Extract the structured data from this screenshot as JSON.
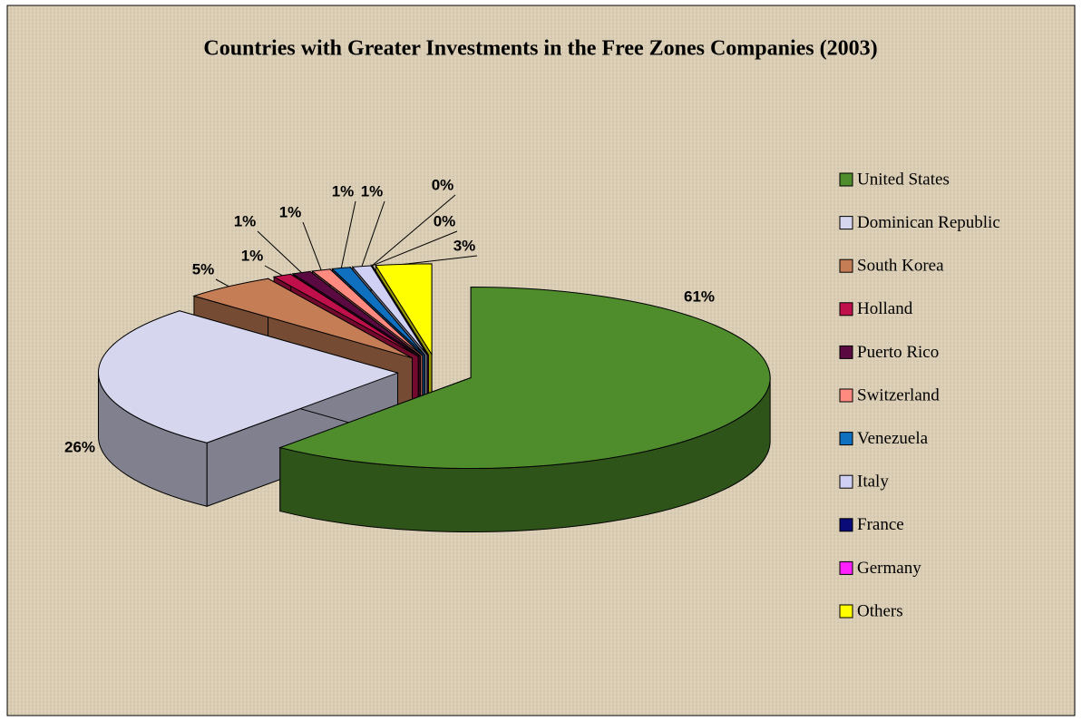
{
  "chart_data": {
    "type": "pie",
    "title": "Countries with Greater Investments in the Free Zones Companies (2003)",
    "categories": [
      "United States",
      "Dominican Republic",
      "South Korea",
      "Holland",
      "Puerto Rico",
      "Switzerland",
      "Venezuela",
      "Italy",
      "France",
      "Germany",
      "Others"
    ],
    "values": [
      61,
      26,
      5,
      1,
      1,
      1,
      1,
      1,
      0,
      0,
      3
    ],
    "value_labels": [
      "61%",
      "26%",
      "5%",
      "1%",
      "1%",
      "1%",
      "1%",
      "1%",
      "0%",
      "0%",
      "3%"
    ],
    "colors": [
      "#4e8c2c",
      "#d6d6ee",
      "#c57d55",
      "#c0104c",
      "#5a0a40",
      "#ff8a80",
      "#1070c0",
      "#cfd0f4",
      "#0a0a78",
      "#ff20ff",
      "#ffff00"
    ],
    "legend": "right"
  }
}
